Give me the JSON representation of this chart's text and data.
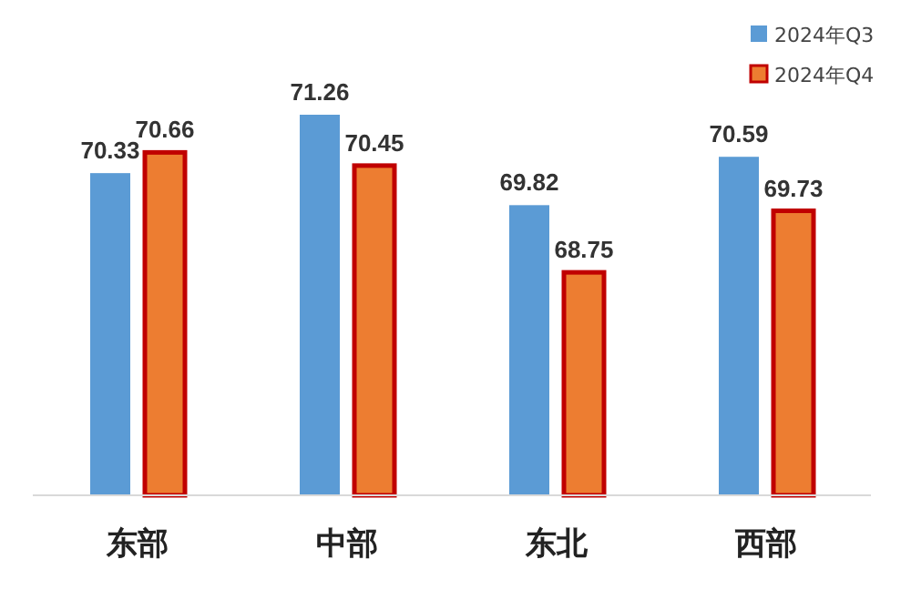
{
  "chart_data": {
    "type": "bar",
    "categories": [
      "东部",
      "中部",
      "东北",
      "西部"
    ],
    "series": [
      {
        "name": "2024年Q3",
        "color": "#5b9bd5",
        "values": [
          70.33,
          71.26,
          69.82,
          70.59
        ]
      },
      {
        "name": "2024年Q4",
        "color": "#ed7d31",
        "values": [
          70.66,
          70.45,
          68.75,
          69.73
        ]
      }
    ],
    "ylim": [
      65.2,
      71.26
    ],
    "data_labels": true,
    "legend": "top right"
  }
}
